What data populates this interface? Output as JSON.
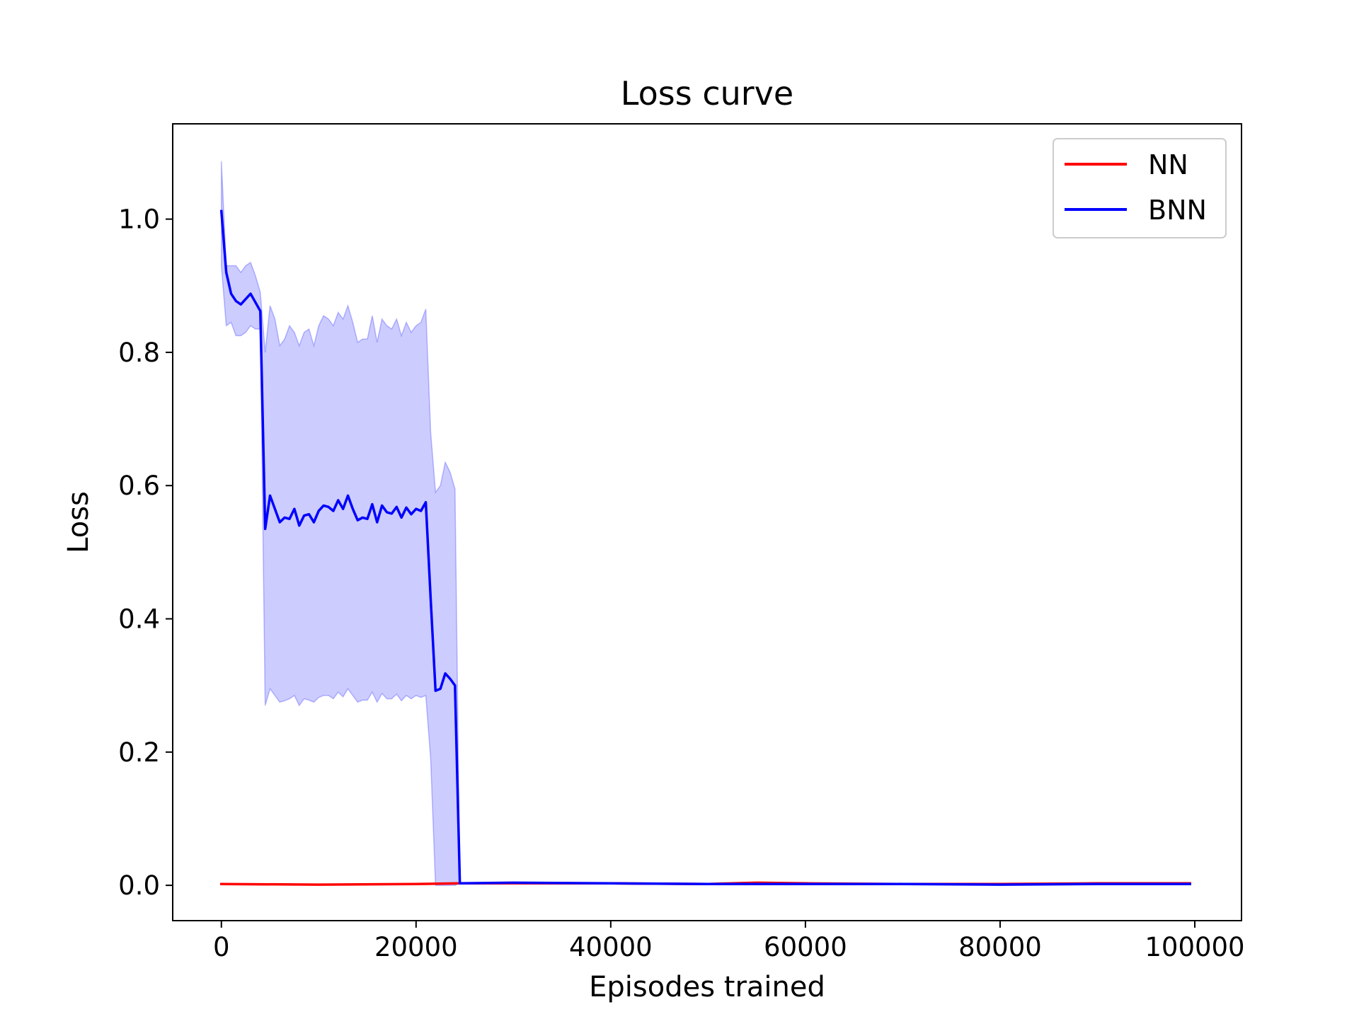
{
  "chart_data": {
    "type": "line",
    "title": "Loss curve",
    "xlabel": "Episodes trained",
    "ylabel": "Loss",
    "xlim": [
      -5000,
      104800
    ],
    "ylim": [
      -0.053,
      1.143
    ],
    "xticks": [
      0,
      20000,
      40000,
      60000,
      80000,
      100000
    ],
    "xtick_labels": [
      "0",
      "20000",
      "40000",
      "60000",
      "80000",
      "100000"
    ],
    "yticks": [
      0.0,
      0.2,
      0.4,
      0.6,
      0.8,
      1.0
    ],
    "ytick_labels": [
      "0.0",
      "0.2",
      "0.4",
      "0.6",
      "0.8",
      "1.0"
    ],
    "grid": false,
    "legend_position": "top-right",
    "series": [
      {
        "name": "NN",
        "color": "#ff0000",
        "x": [
          0,
          10000,
          20000,
          24500,
          30000,
          40000,
          50000,
          55000,
          60000,
          70000,
          80000,
          90000,
          99500
        ],
        "values": [
          0.002,
          0.001,
          0.002,
          0.003,
          0.003,
          0.003,
          0.002,
          0.004,
          0.003,
          0.002,
          0.002,
          0.003,
          0.003
        ]
      },
      {
        "name": "BNN",
        "color": "#0000ff",
        "band_color": "#0000ff",
        "band_opacity": 0.2,
        "x": [
          0,
          500,
          1000,
          1500,
          2000,
          2500,
          3000,
          3500,
          4000,
          4500,
          5000,
          5500,
          6000,
          6500,
          7000,
          7500,
          8000,
          8500,
          9000,
          9500,
          10000,
          10500,
          11000,
          11500,
          12000,
          12500,
          13000,
          13500,
          14000,
          14500,
          15000,
          15500,
          16000,
          16500,
          17000,
          17500,
          18000,
          18500,
          19000,
          19500,
          20000,
          20500,
          21000,
          21500,
          22000,
          22500,
          23000,
          23500,
          24000,
          24500,
          30000,
          40000,
          50000,
          60000,
          70000,
          80000,
          90000,
          99500
        ],
        "values": [
          1.012,
          0.92,
          0.888,
          0.877,
          0.872,
          0.88,
          0.888,
          0.875,
          0.862,
          0.535,
          0.585,
          0.565,
          0.545,
          0.552,
          0.55,
          0.565,
          0.54,
          0.555,
          0.557,
          0.545,
          0.562,
          0.57,
          0.568,
          0.562,
          0.578,
          0.565,
          0.585,
          0.565,
          0.548,
          0.552,
          0.55,
          0.572,
          0.545,
          0.57,
          0.56,
          0.558,
          0.568,
          0.552,
          0.567,
          0.557,
          0.565,
          0.562,
          0.575,
          0.43,
          0.292,
          0.295,
          0.318,
          0.31,
          0.3,
          0.003,
          0.004,
          0.003,
          0.002,
          0.002,
          0.002,
          0.001,
          0.002,
          0.002
        ],
        "upper": [
          1.087,
          0.93,
          0.93,
          0.93,
          0.92,
          0.93,
          0.935,
          0.915,
          0.89,
          0.8,
          0.87,
          0.85,
          0.81,
          0.82,
          0.84,
          0.83,
          0.81,
          0.83,
          0.835,
          0.81,
          0.84,
          0.855,
          0.85,
          0.84,
          0.86,
          0.85,
          0.87,
          0.845,
          0.815,
          0.82,
          0.82,
          0.855,
          0.815,
          0.85,
          0.84,
          0.835,
          0.85,
          0.825,
          0.845,
          0.83,
          0.84,
          0.845,
          0.865,
          0.68,
          0.59,
          0.6,
          0.635,
          0.62,
          0.595,
          0.003,
          0.004,
          0.003,
          0.002,
          0.002,
          0.002,
          0.001,
          0.002,
          0.002
        ],
        "lower": [
          0.93,
          0.84,
          0.845,
          0.825,
          0.825,
          0.83,
          0.84,
          0.835,
          0.835,
          0.27,
          0.295,
          0.285,
          0.275,
          0.277,
          0.28,
          0.285,
          0.27,
          0.28,
          0.278,
          0.275,
          0.282,
          0.285,
          0.285,
          0.28,
          0.29,
          0.283,
          0.295,
          0.285,
          0.275,
          0.278,
          0.278,
          0.29,
          0.275,
          0.288,
          0.28,
          0.28,
          0.287,
          0.277,
          0.285,
          0.28,
          0.285,
          0.282,
          0.285,
          0.19,
          0.0,
          0.0,
          0.0,
          0.0,
          0.0,
          0.003,
          0.004,
          0.003,
          0.002,
          0.002,
          0.002,
          0.001,
          0.002,
          0.002
        ]
      }
    ]
  }
}
